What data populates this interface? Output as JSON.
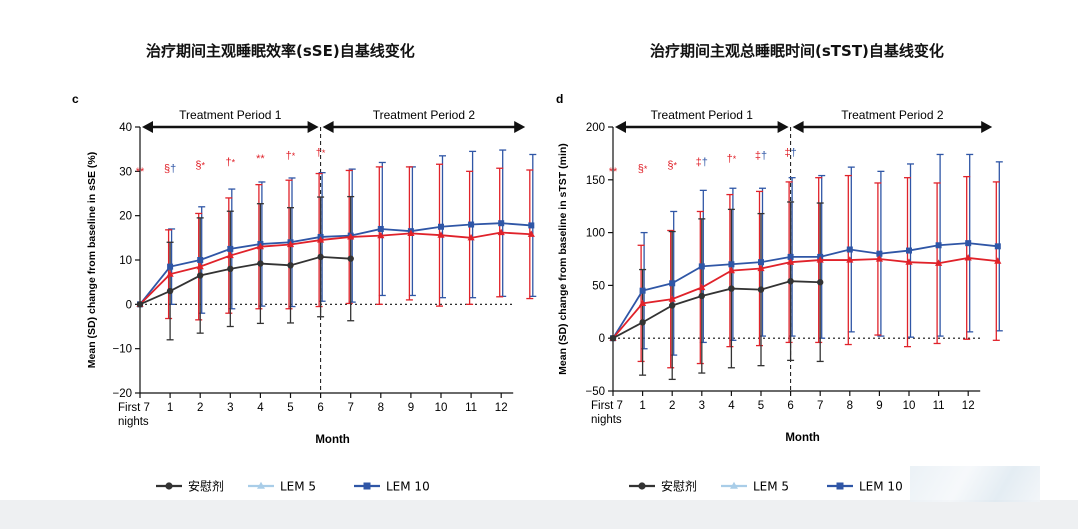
{
  "titles": {
    "left": "治疗期间主观睡眠效率(sSE)自基线变化",
    "right": "治疗期间主观总睡眠时间(sTST)自基线变化"
  },
  "colors": {
    "placebo": "#333333",
    "lem5_legend": "#a9cde8",
    "lem10": "#2f56a6",
    "lem5_line": "#e0222a",
    "annot": "#e0222a",
    "annot_blue": "#2f56a6"
  },
  "legend": [
    {
      "label": "安慰剂",
      "key": "placebo"
    },
    {
      "label": "LEM 5",
      "key": "lem5"
    },
    {
      "label": "LEM 10",
      "key": "lem10"
    }
  ],
  "chart_data": [
    {
      "panel_label": "c",
      "type": "line",
      "periods": [
        "Treatment Period 1",
        "Treatment Period 2"
      ],
      "xlabel": "Month",
      "ylabel": "Mean (SD) change from baseline in sSE (%)",
      "x_tick_labels": [
        "First 7 nights",
        "1",
        "2",
        "3",
        "4",
        "5",
        "6",
        "7",
        "8",
        "9",
        "10",
        "11",
        "12"
      ],
      "x_tick_first_lines": [
        "First 7",
        "nights"
      ],
      "ylim": [
        -20,
        40
      ],
      "yticks": [
        -20,
        -10,
        0,
        10,
        20,
        30,
        40
      ],
      "series": [
        {
          "name": "安慰剂",
          "key": "placebo",
          "values": [
            0,
            3,
            6.5,
            8,
            9.2,
            8.8,
            10.7,
            10.3
          ],
          "sd": [
            0,
            11,
            13,
            13,
            13.5,
            13,
            13.5,
            14
          ]
        },
        {
          "name": "LEM 5",
          "key": "lem5",
          "values": [
            0,
            6.8,
            8.5,
            11,
            13,
            13.5,
            14.5,
            15.2,
            15.5,
            16,
            15.6,
            15,
            16.2,
            15.8
          ],
          "sd": [
            0,
            10,
            12,
            13,
            14,
            14.5,
            15,
            15,
            15.5,
            15,
            16,
            15,
            14.5,
            14.5
          ]
        },
        {
          "name": "LEM 10",
          "key": "lem10",
          "values": [
            0,
            8.5,
            10,
            12.5,
            13.6,
            14,
            15.2,
            15.5,
            17,
            16.5,
            17.5,
            18,
            18.3,
            17.8
          ],
          "sd": [
            0,
            8.5,
            12,
            13.5,
            14,
            14.5,
            14.5,
            15,
            15,
            14.5,
            16,
            16.5,
            16.5,
            16
          ]
        }
      ],
      "annotations": [
        {
          "x": 1,
          "text": "**",
          "color": "annot"
        },
        {
          "x": 2,
          "text": "§",
          "color": "annot",
          "text2": "†",
          "color2": "annot_blue"
        },
        {
          "x": 3,
          "text": "§",
          "color": "annot",
          "text2": "*",
          "color2": "annot"
        },
        {
          "x": 4,
          "text": "†",
          "color": "annot",
          "text2": "*",
          "color2": "annot"
        },
        {
          "x": 5,
          "text": "**",
          "color": "annot"
        },
        {
          "x": 6,
          "text": "†",
          "color": "annot",
          "text2": "*",
          "color2": "annot"
        },
        {
          "x": 7,
          "text": "†",
          "color": "annot",
          "text2": "*",
          "color2": "annot"
        }
      ]
    },
    {
      "panel_label": "d",
      "type": "line",
      "periods": [
        "Treatment Period 1",
        "Treatment Period 2"
      ],
      "xlabel": "Month",
      "ylabel": "Mean (SD) change from baseline in sTST (min)",
      "x_tick_labels": [
        "First 7 nights",
        "1",
        "2",
        "3",
        "4",
        "5",
        "6",
        "7",
        "8",
        "9",
        "10",
        "11",
        "12"
      ],
      "x_tick_first_lines": [
        "First 7",
        "nights"
      ],
      "ylim": [
        -50,
        200
      ],
      "yticks": [
        -50,
        0,
        50,
        100,
        150,
        200
      ],
      "series": [
        {
          "name": "安慰剂",
          "key": "placebo",
          "values": [
            0,
            15,
            31,
            40,
            47,
            46,
            54,
            53
          ],
          "sd": [
            0,
            50,
            70,
            73,
            75,
            72,
            75,
            75
          ]
        },
        {
          "name": "LEM 5",
          "key": "lem5",
          "values": [
            0,
            33,
            37,
            48,
            64,
            66,
            72,
            74,
            74,
            75,
            72,
            71,
            76,
            73
          ],
          "sd": [
            0,
            55,
            65,
            72,
            72,
            73,
            76,
            78,
            80,
            72,
            80,
            76,
            77,
            75
          ]
        },
        {
          "name": "LEM 10",
          "key": "lem10",
          "values": [
            0,
            45,
            52,
            68,
            70,
            72,
            77,
            77,
            84,
            80,
            83,
            88,
            90,
            87
          ],
          "sd": [
            0,
            55,
            68,
            72,
            72,
            70,
            75,
            77,
            78,
            78,
            82,
            86,
            84,
            80
          ]
        }
      ],
      "annotations": [
        {
          "x": 1,
          "text": "**",
          "color": "annot"
        },
        {
          "x": 2,
          "text": "§",
          "color": "annot",
          "text2": "*",
          "color2": "annot"
        },
        {
          "x": 3,
          "text": "§",
          "color": "annot",
          "text2": "*",
          "color2": "annot"
        },
        {
          "x": 4,
          "text": "‡",
          "color": "annot",
          "text2": "†",
          "color2": "annot_blue"
        },
        {
          "x": 5,
          "text": "†",
          "color": "annot",
          "text2": "*",
          "color2": "annot"
        },
        {
          "x": 6,
          "text": "‡",
          "color": "annot",
          "text2": "†",
          "color2": "annot_blue"
        },
        {
          "x": 7,
          "text": "‡",
          "color": "annot",
          "text2": "†",
          "color2": "annot_blue"
        }
      ]
    }
  ]
}
